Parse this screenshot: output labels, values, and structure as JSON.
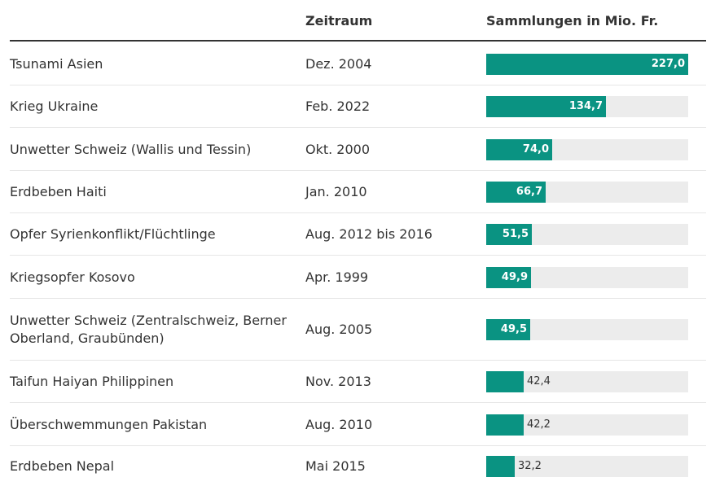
{
  "header": {
    "col_period": "Zeitraum",
    "col_value": "Sammlungen in Mio. Fr."
  },
  "colors": {
    "bar": "#0a9382",
    "track": "#ececec"
  },
  "chart_data": {
    "type": "bar",
    "orientation": "horizontal",
    "ylabel": "Sammlungen in Mio. Fr.",
    "xlim": [
      0,
      227.0
    ],
    "categories": [
      "Tsunami Asien",
      "Krieg Ukraine",
      "Unwetter Schweiz (Wallis und Tessin)",
      "Erdbeben Haiti",
      "Opfer Syrienkonflikt/Flüchtlinge",
      "Kriegsopfer Kosovo",
      "Unwetter Schweiz (Zentralschweiz, Berner Oberland, Graubünden)",
      "Taifun Haiyan Philippinen",
      "Überschwemmungen Pakistan",
      "Erdbeben Nepal"
    ],
    "periods": [
      "Dez. 2004",
      "Feb. 2022",
      "Okt. 2000",
      "Jan. 2010",
      "Aug. 2012 bis 2016",
      "Apr. 1999",
      "Aug. 2005",
      "Nov. 2013",
      "Aug. 2010",
      "Mai 2015"
    ],
    "values": [
      227.0,
      134.7,
      74.0,
      66.7,
      51.5,
      49.9,
      49.5,
      42.4,
      42.2,
      32.2
    ],
    "value_labels": [
      "227,0",
      "134,7",
      "74,0",
      "66,7",
      "51,5",
      "49,9",
      "49,5",
      "42,4",
      "42,2",
      "32,2"
    ]
  }
}
